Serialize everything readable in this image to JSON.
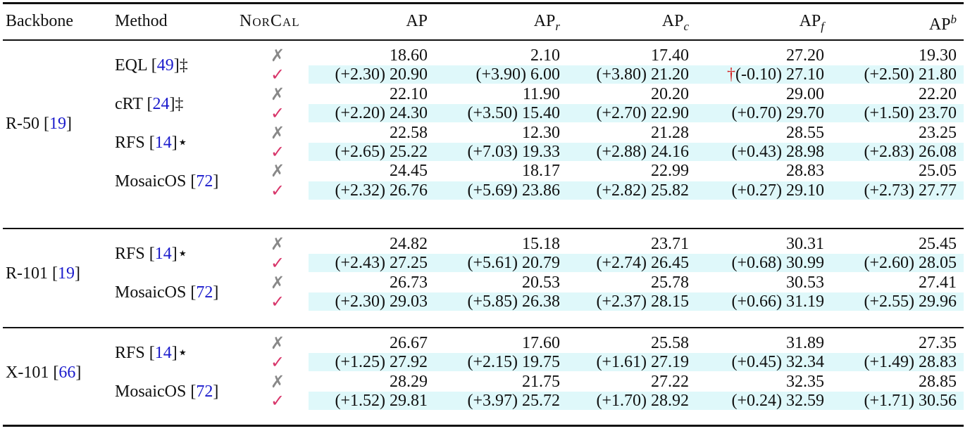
{
  "header": {
    "backbone": "Backbone",
    "method": "Method",
    "norcal": "NorCal",
    "ap": "AP",
    "ap_r_base": "AP",
    "ap_r_sub": "r",
    "ap_c_base": "AP",
    "ap_c_sub": "c",
    "ap_f_base": "AP",
    "ap_f_sub": "f",
    "ap_b_base": "AP",
    "ap_b_sup": "b"
  },
  "marks": {
    "no": "✗",
    "yes": "✓",
    "dagger": "†"
  },
  "groups": [
    {
      "backbone": "R-50 [",
      "backbone_cite": "19",
      "backbone_close": "]",
      "methods": [
        {
          "name": "EQL [",
          "cite": "49",
          "suffix": "]‡",
          "base": [
            "18.60",
            "2.10",
            "17.40",
            "27.20",
            "19.30"
          ],
          "norcal": [
            "(+2.30) 20.90",
            "(+3.90) 6.00",
            "(+3.80) 21.20",
            "(-0.10) 27.10",
            "(+2.50) 21.80"
          ],
          "dagger_col": 3
        },
        {
          "name": "cRT [",
          "cite": "24",
          "suffix": "]‡",
          "base": [
            "22.10",
            "11.90",
            "20.20",
            "29.00",
            "22.20"
          ],
          "norcal": [
            "(+2.20) 24.30",
            "(+3.50) 15.40",
            "(+2.70) 22.90",
            "(+0.70) 29.70",
            "(+1.50) 23.70"
          ]
        },
        {
          "name": "RFS [",
          "cite": "14",
          "suffix": "]⋆",
          "base": [
            "22.58",
            "12.30",
            "21.28",
            "28.55",
            "23.25"
          ],
          "norcal": [
            "(+2.65) 25.22",
            "(+7.03) 19.33",
            "(+2.88) 24.16",
            "(+0.43) 28.98",
            "(+2.83) 26.08"
          ]
        },
        {
          "name": "MosaicOS [",
          "cite": "72",
          "suffix": "]",
          "base": [
            "24.45",
            "18.17",
            "22.99",
            "28.83",
            "25.05"
          ],
          "norcal": [
            "(+2.32) 26.76",
            "(+5.69) 23.86",
            "(+2.82) 25.82",
            "(+0.27) 29.10",
            "(+2.73) 27.77"
          ]
        }
      ]
    },
    {
      "backbone": "R-101 [",
      "backbone_cite": "19",
      "backbone_close": "]",
      "methods": [
        {
          "name": "RFS [",
          "cite": "14",
          "suffix": "]⋆",
          "base": [
            "24.82",
            "15.18",
            "23.71",
            "30.31",
            "25.45"
          ],
          "norcal": [
            "(+2.43) 27.25",
            "(+5.61) 20.79",
            "(+2.74) 26.45",
            "(+0.68) 30.99",
            "(+2.60) 28.05"
          ]
        },
        {
          "name": "MosaicOS [",
          "cite": "72",
          "suffix": "]",
          "base": [
            "26.73",
            "20.53",
            "25.78",
            "30.53",
            "27.41"
          ],
          "norcal": [
            "(+2.30) 29.03",
            "(+5.85) 26.38",
            "(+2.37) 28.15",
            "(+0.66) 31.19",
            "(+2.55) 29.96"
          ]
        }
      ]
    },
    {
      "backbone": "X-101 [",
      "backbone_cite": "66",
      "backbone_close": "]",
      "methods": [
        {
          "name": "RFS [",
          "cite": "14",
          "suffix": "]⋆",
          "base": [
            "26.67",
            "17.60",
            "25.58",
            "31.89",
            "27.35"
          ],
          "norcal": [
            "(+1.25) 27.92",
            "(+2.15) 19.75",
            "(+1.61) 27.19",
            "(+0.45) 32.34",
            "(+1.49) 28.83"
          ]
        },
        {
          "name": "MosaicOS [",
          "cite": "72",
          "suffix": "]",
          "base": [
            "28.29",
            "21.75",
            "27.22",
            "32.35",
            "28.85"
          ],
          "norcal": [
            "(+1.52) 29.81",
            "(+3.97) 25.72",
            "(+1.70) 28.92",
            "(+0.24) 32.59",
            "(+1.71) 30.56"
          ]
        }
      ]
    }
  ],
  "colors": {
    "highlight": "#dff8fa",
    "check": "#d8356a",
    "cross": "#888888",
    "cite": "#1a1acc",
    "dagger": "#d41e1e"
  }
}
